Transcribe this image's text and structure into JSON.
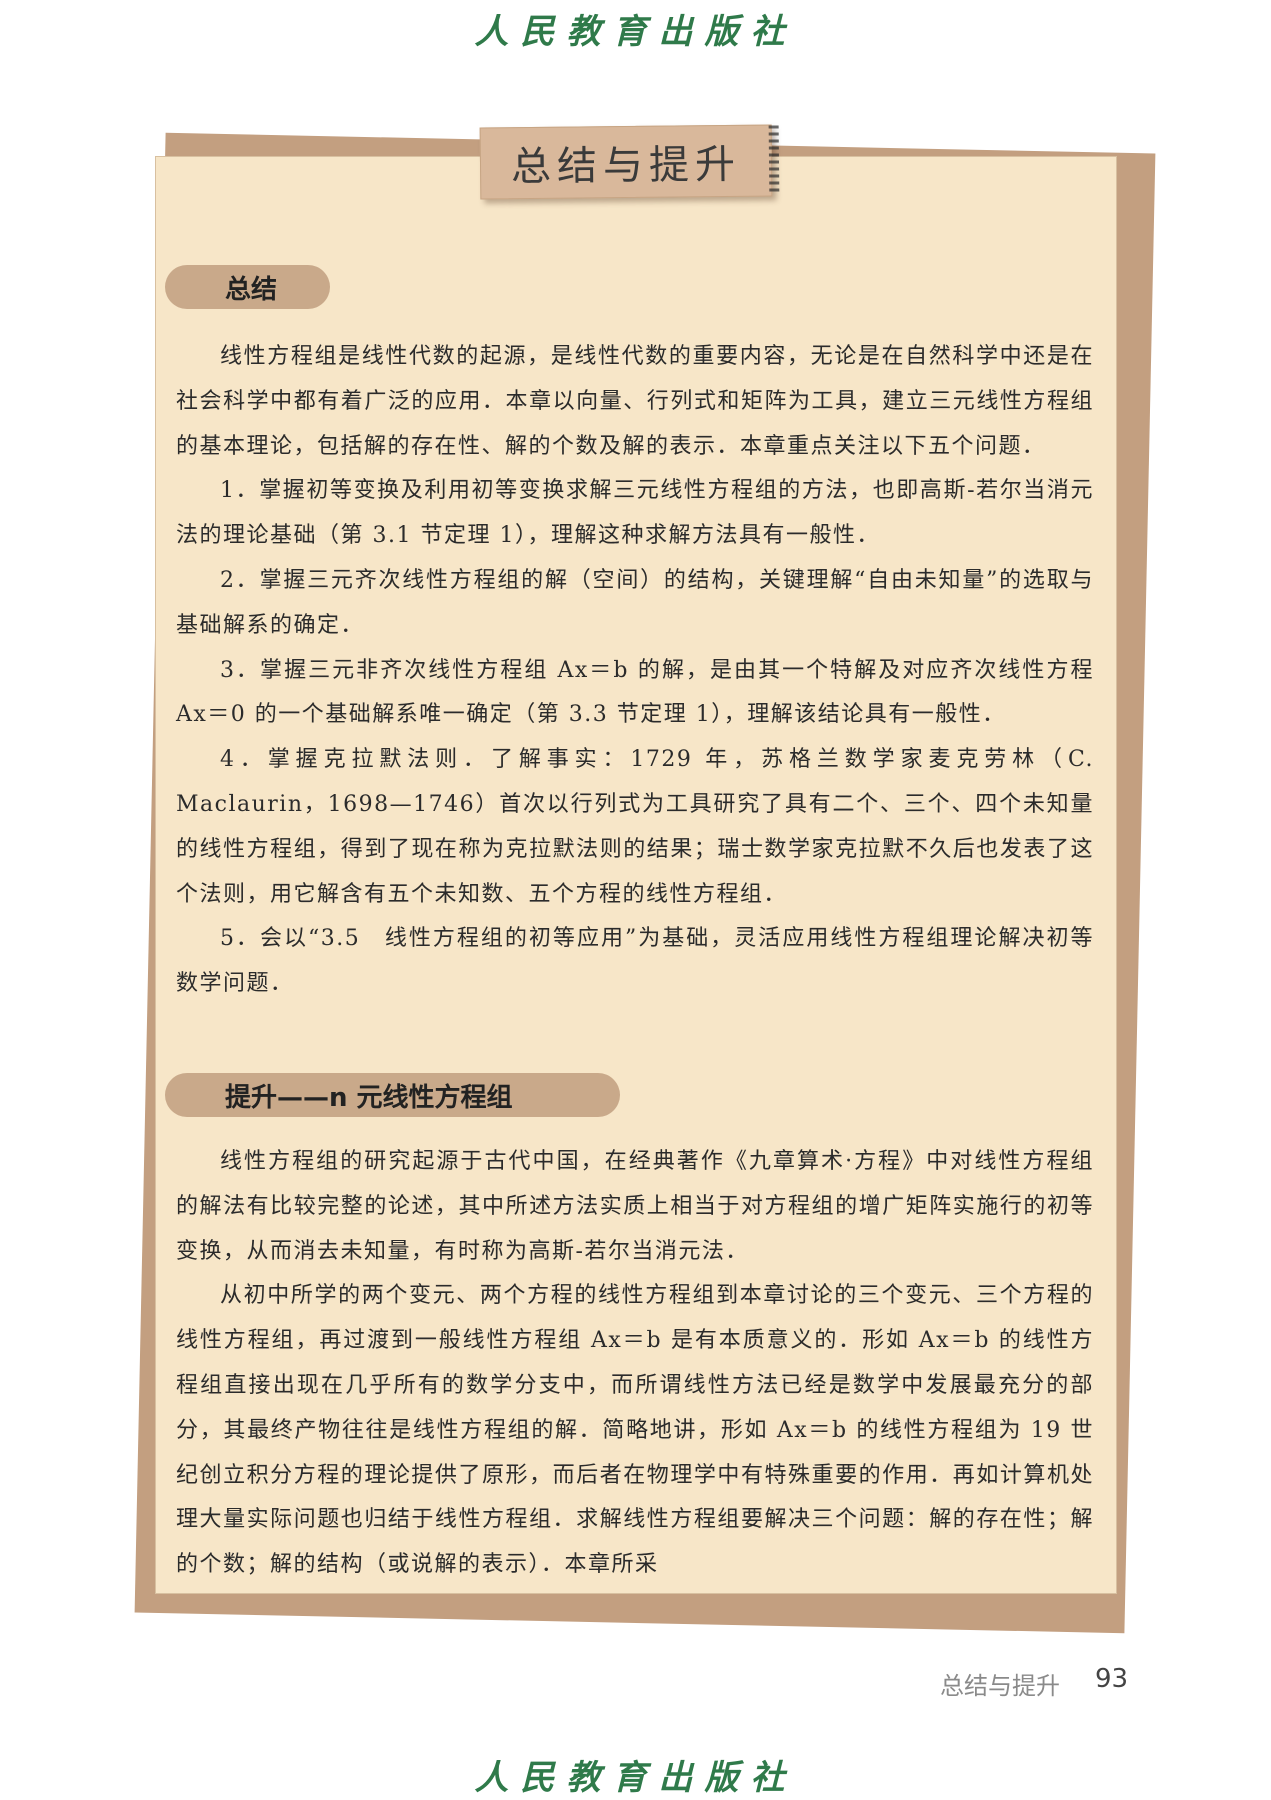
{
  "publisher": "人民教育出版社",
  "title": "总结与提升",
  "section1": {
    "heading": "总结",
    "paragraphs": [
      "线性方程组是线性代数的起源，是线性代数的重要内容，无论是在自然科学中还是在社会科学中都有着广泛的应用．本章以向量、行列式和矩阵为工具，建立三元线性方程组的基本理论，包括解的存在性、解的个数及解的表示．本章重点关注以下五个问题．",
      "1．掌握初等变换及利用初等变换求解三元线性方程组的方法，也即高斯-若尔当消元法的理论基础（第 3.1 节定理 1），理解这种求解方法具有一般性．",
      "2．掌握三元齐次线性方程组的解（空间）的结构，关键理解“自由未知量”的选取与基础解系的确定．",
      "3．掌握三元非齐次线性方程组 Ax＝b 的解，是由其一个特解及对应齐次线性方程 Ax＝0 的一个基础解系唯一确定（第 3.3 节定理 1），理解该结论具有一般性．",
      "4．掌握克拉默法则．了解事实：1729 年，苏格兰数学家麦克劳林（C. Maclaurin，1698—1746）首次以行列式为工具研究了具有二个、三个、四个未知量的线性方程组，得到了现在称为克拉默法则的结果；瑞士数学家克拉默不久后也发表了这个法则，用它解含有五个未知数、五个方程的线性方程组．",
      "5．会以“3.5　线性方程组的初等应用”为基础，灵活应用线性方程组理论解决初等数学问题．"
    ]
  },
  "section2": {
    "heading": "提升——n 元线性方程组",
    "paragraphs": [
      "线性方程组的研究起源于古代中国，在经典著作《九章算术·方程》中对线性方程组的解法有比较完整的论述，其中所述方法实质上相当于对方程组的增广矩阵实施行的初等变换，从而消去未知量，有时称为高斯-若尔当消元法．",
      "从初中所学的两个变元、两个方程的线性方程组到本章讨论的三个变元、三个方程的线性方程组，再过渡到一般线性方程组 Ax＝b 是有本质意义的．形如 Ax＝b 的线性方程组直接出现在几乎所有的数学分支中，而所谓线性方法已经是数学中发展最充分的部分，其最终产物往往是线性方程组的解．简略地讲，形如 Ax＝b 的线性方程组为 19 世纪创立积分方程的理论提供了原形，而后者在物理学中有特殊重要的作用．再如计算机处理大量实际问题也归结于线性方程组．求解线性方程组要解决三个问题：解的存在性；解的个数；解的结构（或说解的表示）．本章所采"
    ]
  },
  "footer": {
    "label": "总结与提升",
    "page": "93"
  }
}
